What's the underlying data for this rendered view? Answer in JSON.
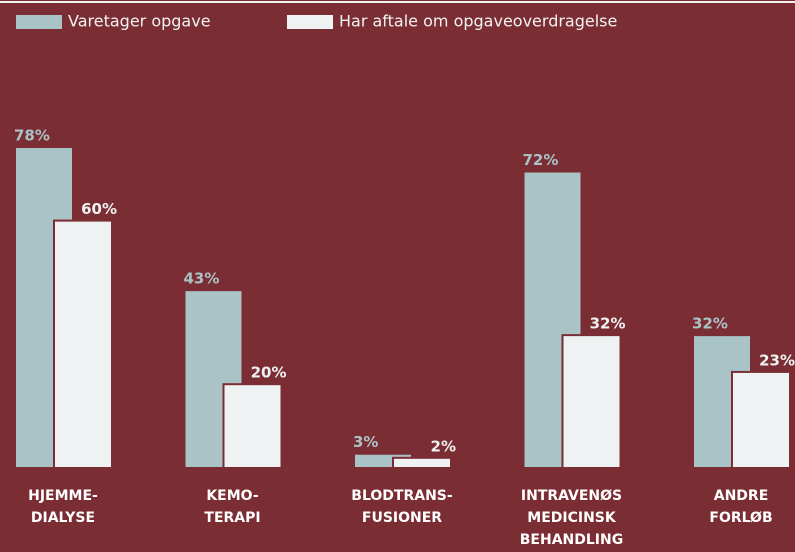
{
  "chart_data": {
    "type": "bar",
    "categories": [
      "HJEMME-\nDIALYSE",
      "KEMO-\nTERAPI",
      "BLODTRANS-\nFUSIONER",
      "INTRAVENØS\nMEDICINSK\nBEHANDLING",
      "ANDRE\nFORLØB"
    ],
    "series": [
      {
        "name": "Varetager opgave",
        "color": "#a9c3c7",
        "values": [
          78,
          43,
          3,
          72,
          32
        ],
        "value_labels": [
          "78%",
          "43%",
          "3%",
          "72%",
          "32%"
        ]
      },
      {
        "name": "Har aftale om opgaveoverdragelse",
        "color": "#eef2f2",
        "values": [
          60,
          20,
          2,
          32,
          23
        ],
        "value_labels": [
          "60%",
          "20%",
          "2%",
          "32%",
          "23%"
        ]
      }
    ],
    "ylim": [
      0,
      100
    ],
    "background": "#7b2d34"
  }
}
